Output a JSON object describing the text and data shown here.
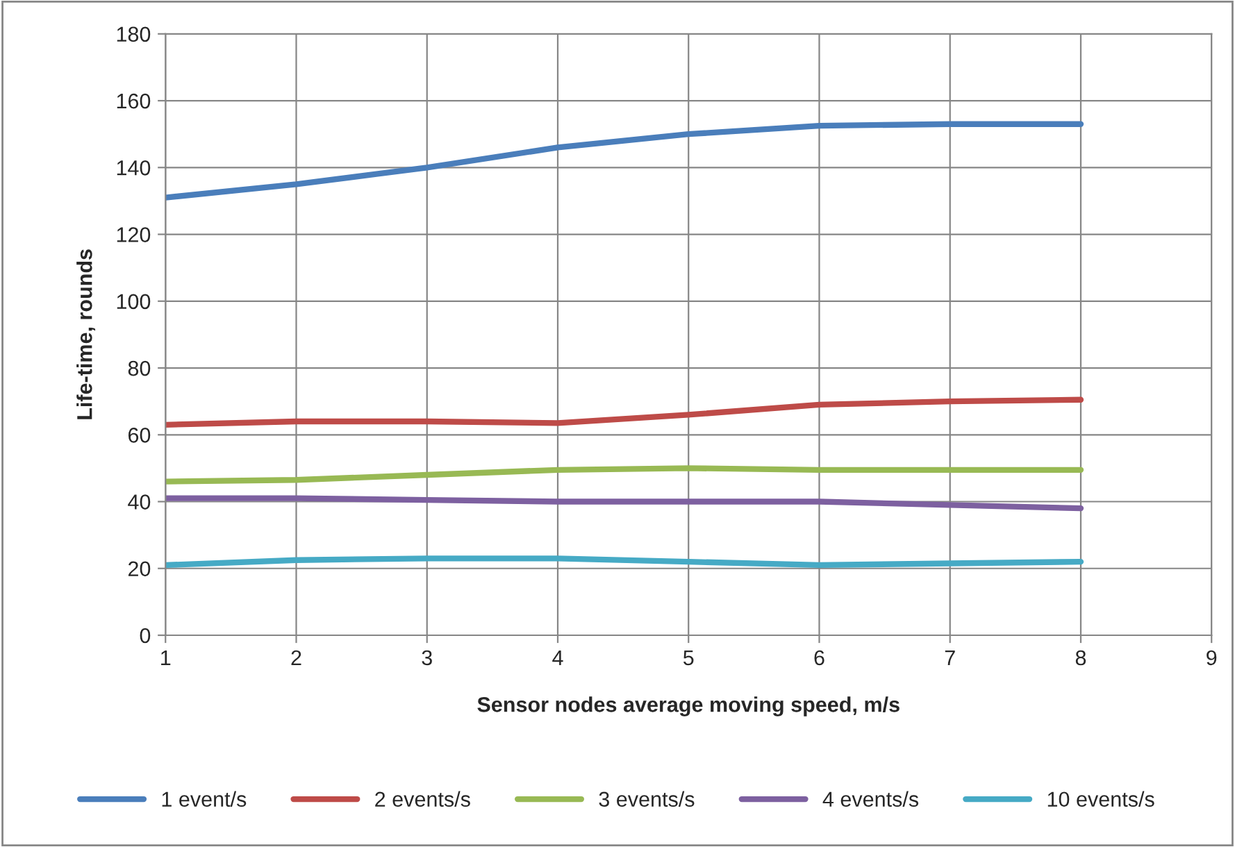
{
  "chart_data": {
    "type": "line",
    "xlabel": "Sensor nodes average moving speed, m/s",
    "ylabel": "Life-time, rounds",
    "x": [
      1,
      2,
      3,
      4,
      5,
      6,
      7,
      8
    ],
    "series": [
      {
        "name": "1 event/s",
        "color": "#4a7ebb",
        "values": [
          131,
          135,
          140,
          146,
          150,
          152.5,
          153,
          153
        ]
      },
      {
        "name": "2 events/s",
        "color": "#be4b48",
        "values": [
          63,
          64,
          64,
          63.5,
          66,
          69,
          70,
          70.5
        ]
      },
      {
        "name": "3 events/s",
        "color": "#98b954",
        "values": [
          46,
          46.5,
          48,
          49.5,
          50,
          49.5,
          49.5,
          49.5
        ]
      },
      {
        "name": "4 events/s",
        "color": "#7d60a0",
        "values": [
          41,
          41,
          40.5,
          40,
          40,
          40,
          39,
          38
        ]
      },
      {
        "name": "10 events/s",
        "color": "#46aac5",
        "values": [
          21,
          22.5,
          23,
          23,
          22,
          21,
          21.5,
          22
        ]
      }
    ],
    "xlim": [
      1,
      9
    ],
    "xticks": [
      1,
      2,
      3,
      4,
      5,
      6,
      7,
      8,
      9
    ],
    "ylim": [
      0,
      180
    ],
    "yticks": [
      0,
      20,
      40,
      60,
      80,
      100,
      120,
      140,
      160,
      180
    ],
    "grid": true,
    "legend": "bottom",
    "marker": "none",
    "line_style": "solid"
  }
}
